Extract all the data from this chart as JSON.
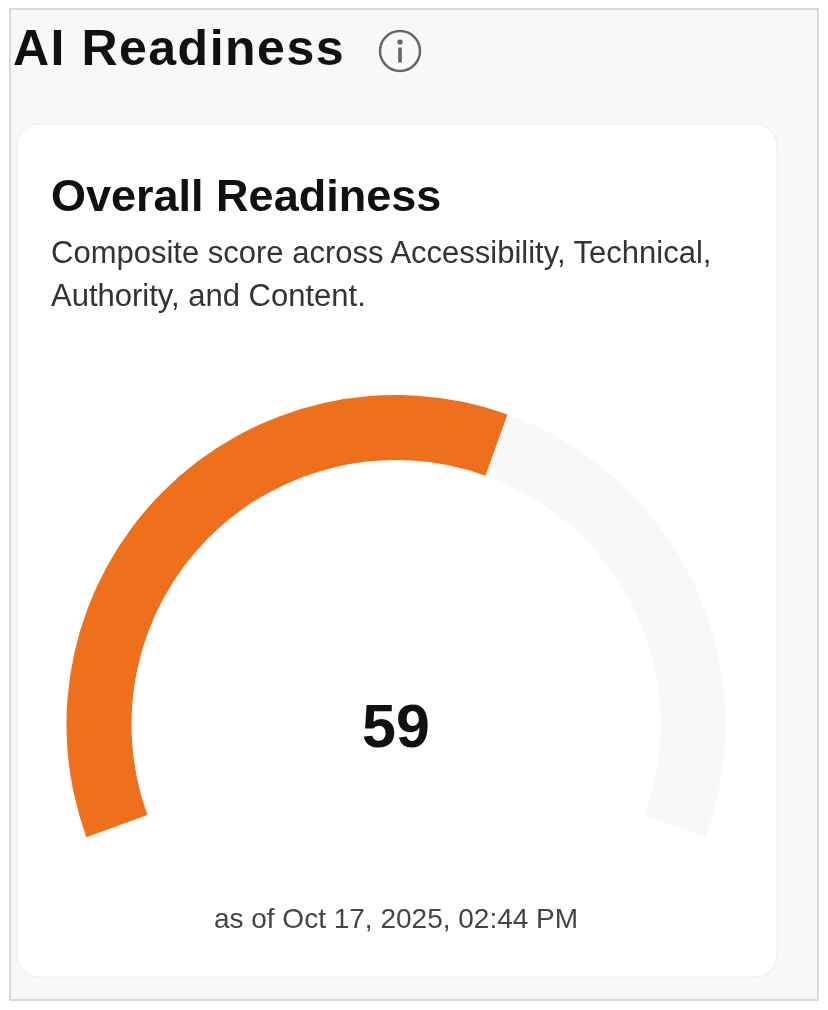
{
  "chart_data": {
    "type": "donut",
    "title": "Overall Readiness",
    "subtitle": "Composite score across Accessibility, Technical, Authority, and Content.",
    "categories": [
      null,
      null
    ],
    "values": [
      59,
      41
    ],
    "colors": [
      "#ee701d",
      "#f8f8f8"
    ],
    "annotations": [
      "AI Readiness",
      "59",
      "as of Oct 17, 2025, 02:44 PM"
    ]
  }
}
